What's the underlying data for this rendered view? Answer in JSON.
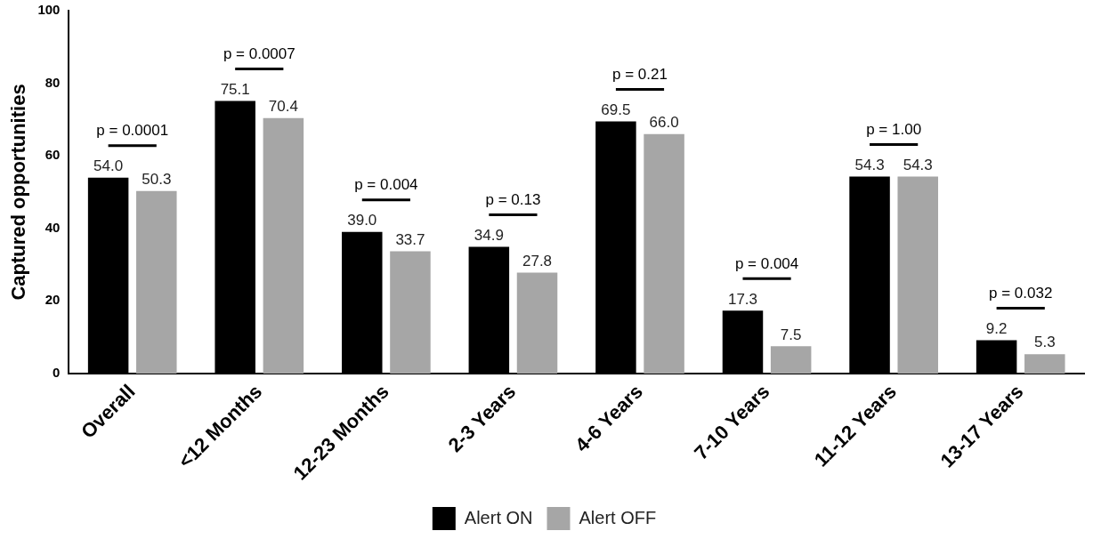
{
  "chart_data": {
    "type": "bar",
    "ylabel": "Captured opportunities",
    "categories": [
      "Overall",
      "<12 Months",
      "12-23 Months",
      "2-3 Years",
      "4-6 Years",
      "7-10 Years",
      "11-12 Years",
      "13-17 Years"
    ],
    "series": [
      {
        "name": "Alert ON",
        "color": "#000000",
        "values": [
          54.0,
          75.1,
          39.0,
          34.9,
          69.5,
          17.3,
          54.3,
          9.2
        ],
        "value_labels": [
          "54.0",
          "75.1",
          "39.0",
          "34.9",
          "69.5",
          "17.3",
          "54.3",
          "9.2"
        ]
      },
      {
        "name": "Alert OFF",
        "color": "#a6a6a6",
        "values": [
          50.3,
          70.4,
          33.7,
          27.8,
          66.0,
          7.5,
          54.3,
          5.3
        ],
        "value_labels": [
          "50.3",
          "70.4",
          "33.7",
          "27.8",
          "66.0",
          "7.5",
          "54.3",
          "5.3"
        ]
      }
    ],
    "ylim": [
      0,
      100
    ],
    "yticks": [
      0,
      20,
      40,
      60,
      80,
      100
    ],
    "grid": false,
    "legend": "bottom",
    "annotations": [
      "p = 0.0001",
      "p = 0.0007",
      "p = 0.004",
      "p = 0.13",
      "p = 0.21",
      "p = 0.004",
      "p = 1.00",
      "p = 0.032"
    ]
  }
}
